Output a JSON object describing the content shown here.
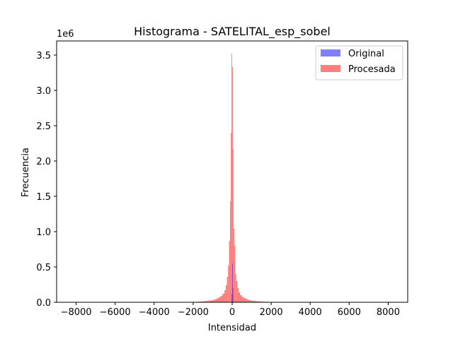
{
  "chart_data": {
    "type": "bar",
    "title": "Histograma - SATELITAL_esp_sobel",
    "xlabel": "Intensidad",
    "ylabel": "Frecuencia",
    "y_offset_label": "1e6",
    "xlim": [
      -9000,
      9000
    ],
    "ylim": [
      0,
      3.7
    ],
    "x_ticks": [
      -8000,
      -6000,
      -4000,
      -2000,
      0,
      2000,
      4000,
      6000,
      8000
    ],
    "x_tick_labels": [
      "−8000",
      "−6000",
      "−4000",
      "−2000",
      "0",
      "2000",
      "4000",
      "6000",
      "8000"
    ],
    "y_ticks": [
      0,
      0.5,
      1.0,
      1.5,
      2.0,
      2.5,
      3.0,
      3.5
    ],
    "y_tick_labels": [
      "0.0",
      "0.5",
      "1.0",
      "1.5",
      "2.0",
      "2.5",
      "3.0",
      "3.5"
    ],
    "legend_position": "top-right",
    "series": [
      {
        "name": "Original",
        "color": "#0000ff",
        "alpha": 0.5,
        "bins": [
          {
            "x0": -30,
            "x1": 0,
            "value": 0.12
          },
          {
            "x0": 0,
            "x1": 30,
            "value": 0.55
          },
          {
            "x0": 30,
            "x1": 60,
            "value": 0.2
          }
        ]
      },
      {
        "name": "Procesada",
        "color": "#ff0000",
        "alpha": 0.5,
        "bins": [
          {
            "x0": -2000,
            "x1": -1800,
            "value": 0.005
          },
          {
            "x0": -1800,
            "x1": -1600,
            "value": 0.008
          },
          {
            "x0": -1600,
            "x1": -1400,
            "value": 0.012
          },
          {
            "x0": -1400,
            "x1": -1200,
            "value": 0.018
          },
          {
            "x0": -1200,
            "x1": -1000,
            "value": 0.026
          },
          {
            "x0": -1000,
            "x1": -900,
            "value": 0.034
          },
          {
            "x0": -900,
            "x1": -800,
            "value": 0.042
          },
          {
            "x0": -800,
            "x1": -700,
            "value": 0.055
          },
          {
            "x0": -700,
            "x1": -600,
            "value": 0.07
          },
          {
            "x0": -600,
            "x1": -500,
            "value": 0.09
          },
          {
            "x0": -500,
            "x1": -400,
            "value": 0.12
          },
          {
            "x0": -400,
            "x1": -330,
            "value": 0.17
          },
          {
            "x0": -330,
            "x1": -270,
            "value": 0.24
          },
          {
            "x0": -270,
            "x1": -210,
            "value": 0.36
          },
          {
            "x0": -210,
            "x1": -160,
            "value": 0.52
          },
          {
            "x0": -160,
            "x1": -110,
            "value": 0.87
          },
          {
            "x0": -110,
            "x1": -70,
            "value": 1.43
          },
          {
            "x0": -70,
            "x1": -35,
            "value": 2.4
          },
          {
            "x0": -35,
            "x1": 0,
            "value": 3.52
          },
          {
            "x0": 0,
            "x1": 35,
            "value": 3.33
          },
          {
            "x0": 35,
            "x1": 70,
            "value": 2.17
          },
          {
            "x0": 70,
            "x1": 110,
            "value": 1.04
          },
          {
            "x0": 110,
            "x1": 160,
            "value": 0.8
          },
          {
            "x0": 160,
            "x1": 210,
            "value": 0.4
          },
          {
            "x0": 210,
            "x1": 270,
            "value": 0.3
          },
          {
            "x0": 270,
            "x1": 330,
            "value": 0.2
          },
          {
            "x0": 330,
            "x1": 400,
            "value": 0.14
          },
          {
            "x0": 400,
            "x1": 500,
            "value": 0.1
          },
          {
            "x0": 500,
            "x1": 600,
            "value": 0.075
          },
          {
            "x0": 600,
            "x1": 700,
            "value": 0.058
          },
          {
            "x0": 700,
            "x1": 800,
            "value": 0.045
          },
          {
            "x0": 800,
            "x1": 900,
            "value": 0.035
          },
          {
            "x0": 900,
            "x1": 1000,
            "value": 0.028
          },
          {
            "x0": 1000,
            "x1": 1200,
            "value": 0.02
          },
          {
            "x0": 1200,
            "x1": 1400,
            "value": 0.014
          },
          {
            "x0": 1400,
            "x1": 1600,
            "value": 0.01
          },
          {
            "x0": 1600,
            "x1": 1800,
            "value": 0.007
          },
          {
            "x0": 1800,
            "x1": 2000,
            "value": 0.005
          }
        ]
      }
    ]
  }
}
